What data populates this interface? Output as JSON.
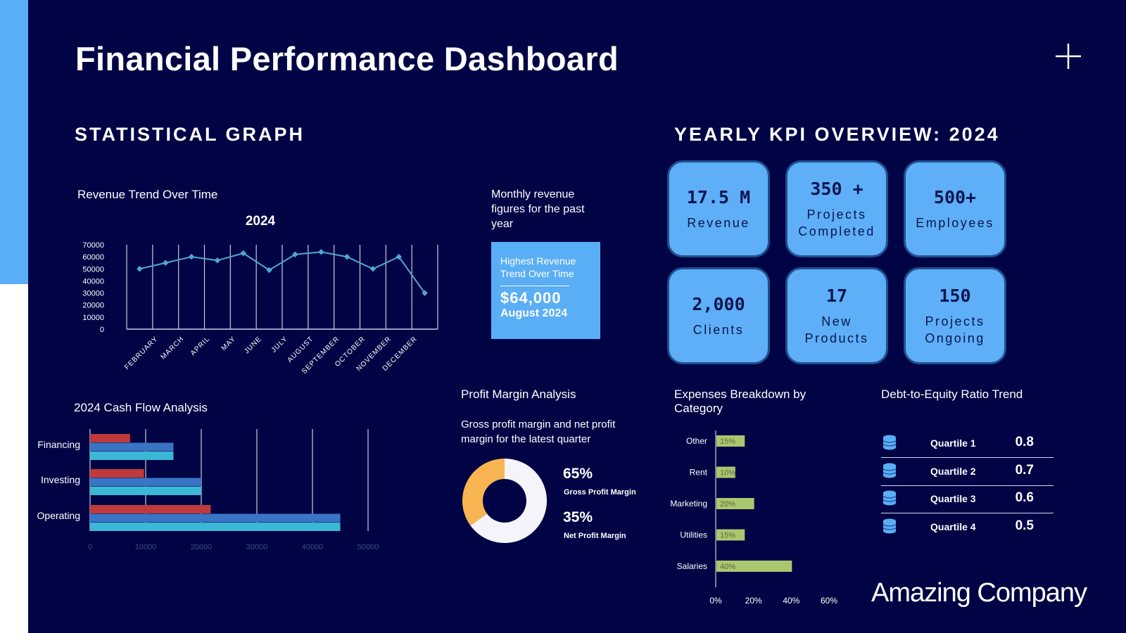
{
  "title": "Financial Performance Dashboard",
  "sections": {
    "statistical": "STATISTICAL GRAPH",
    "kpi": "YEARLY KPI OVERVIEW: 2024"
  },
  "colors": {
    "background": "#000444",
    "accent": "#5aaef5",
    "card": "#5eaff7",
    "line": "#4fa8d0",
    "red": "#c0393b",
    "blue": "#3a74c4",
    "cyan": "#3ab8d6",
    "expense_bar": "#a9c76f",
    "gross": "#f4f4fa",
    "net": "#f8b551"
  },
  "revenue": {
    "title": "Revenue Trend Over Time",
    "note": "Monthly revenue figures for the past year",
    "highlight": {
      "label": "Highest Revenue Trend Over Time",
      "value": "$64,000",
      "date": "August 2024"
    }
  },
  "kpis": [
    {
      "value": "17.5 M",
      "label": "Revenue"
    },
    {
      "value": "350 +",
      "label": "Projects\nCompleted"
    },
    {
      "value": "500+",
      "label": "Employees"
    },
    {
      "value": "2,000",
      "label": "Clients"
    },
    {
      "value": "17",
      "label": "New\nProducts"
    },
    {
      "value": "150",
      "label": "Projects\nOngoing"
    }
  ],
  "profit": {
    "title": "Profit Margin Analysis",
    "subtitle": "Gross profit margin and net profit margin for the latest quarter",
    "gross_value": "65%",
    "gross_label": "Gross Profit Margin",
    "net_value": "35%",
    "net_label": "Net Profit Margin"
  },
  "cashflow": {
    "title": "2024 Cash Flow Analysis"
  },
  "expenses": {
    "title": "Expenses Breakdown by Category"
  },
  "debt": {
    "title": "Debt-to-Equity Ratio Trend",
    "icon": "database-icon",
    "rows": [
      {
        "label": "Quartile 1",
        "value": "0.8"
      },
      {
        "label": "Quartile 2",
        "value": "0.7"
      },
      {
        "label": "Quartile 3",
        "value": "0.6"
      },
      {
        "label": "Quartile 4",
        "value": "0.5"
      }
    ]
  },
  "company": "Amazing Company",
  "chart_data": [
    {
      "type": "line",
      "title": "2024",
      "categories": [
        "",
        "FEBRUARY",
        "MARCH",
        "APRIL",
        "MAY",
        "JUNE",
        "JULY",
        "AUGUST",
        "SEPTEMBER",
        "OCTOBER",
        "NOVEMBER",
        "DECEMBER"
      ],
      "values": [
        50000,
        55000,
        60000,
        57000,
        63000,
        49000,
        62000,
        64000,
        60000,
        50000,
        60000,
        30000
      ],
      "yticks": [
        0,
        10000,
        20000,
        30000,
        40000,
        50000,
        60000,
        70000
      ],
      "ylim": [
        0,
        70000
      ],
      "grid": "vertical"
    },
    {
      "type": "bar",
      "orientation": "horizontal",
      "categories": [
        "Financing",
        "Investing",
        "Operating"
      ],
      "series": [
        {
          "values": [
            7200,
            9700,
            21700
          ]
        },
        {
          "values": [
            15000,
            20000,
            45000
          ]
        },
        {
          "values": [
            15000,
            20000,
            45000
          ]
        }
      ],
      "xticks": [
        0,
        10000,
        20000,
        30000,
        40000,
        50000
      ],
      "xlim": [
        0,
        50000
      ]
    },
    {
      "type": "pie",
      "donut": true,
      "labels": [
        "Gross Profit Margin",
        "Net Profit Margin"
      ],
      "values": [
        65,
        35
      ]
    },
    {
      "type": "bar",
      "orientation": "horizontal",
      "categories": [
        "Other",
        "Rent",
        "Marketing",
        "Utilities",
        "Salaries"
      ],
      "values": [
        15,
        10,
        20,
        15,
        40
      ],
      "data_labels": [
        "15%",
        "10%",
        "20%",
        "15%",
        "40%"
      ],
      "xticks": [
        "0%",
        "20%",
        "40%",
        "60%"
      ],
      "xlim": [
        0,
        60
      ]
    }
  ]
}
